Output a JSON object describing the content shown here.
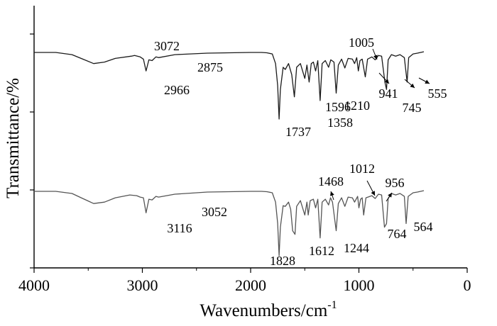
{
  "chart_data": {
    "type": "line",
    "title": "",
    "xlabel": "Wavenumbers/cm",
    "xlabel_superscript": "-1",
    "ylabel": "Transmittance/%",
    "xlim": [
      4000,
      0
    ],
    "x_ticks": [
      4000,
      3000,
      2000,
      1000,
      0
    ],
    "x_tick_labels": [
      "4000",
      "3000",
      "2000",
      "1000",
      "0"
    ],
    "y_tick_labels_shown": false,
    "grid": false,
    "legend": "none",
    "line_colors": [
      "#1a1a1a",
      "#555555"
    ],
    "series": [
      {
        "points": [
          [
            4000,
            0.95
          ],
          [
            3800,
            0.95
          ],
          [
            3650,
            0.92
          ],
          [
            3550,
            0.86
          ],
          [
            3450,
            0.8
          ],
          [
            3350,
            0.82
          ],
          [
            3250,
            0.87
          ],
          [
            3100,
            0.9
          ],
          [
            3072,
            0.91
          ],
          [
            3020,
            0.89
          ],
          [
            2990,
            0.86
          ],
          [
            2966,
            0.7
          ],
          [
            2940,
            0.85
          ],
          [
            2910,
            0.84
          ],
          [
            2875,
            0.89
          ],
          [
            2850,
            0.88
          ],
          [
            2700,
            0.92
          ],
          [
            2400,
            0.94
          ],
          [
            2000,
            0.95
          ],
          [
            1900,
            0.95
          ],
          [
            1850,
            0.945
          ],
          [
            1800,
            0.93
          ],
          [
            1770,
            0.8
          ],
          [
            1750,
            0.5
          ],
          [
            1737,
            0.05
          ],
          [
            1725,
            0.45
          ],
          [
            1700,
            0.75
          ],
          [
            1680,
            0.72
          ],
          [
            1650,
            0.8
          ],
          [
            1620,
            0.65
          ],
          [
            1596,
            0.35
          ],
          [
            1575,
            0.75
          ],
          [
            1540,
            0.8
          ],
          [
            1500,
            0.6
          ],
          [
            1480,
            0.78
          ],
          [
            1460,
            0.55
          ],
          [
            1440,
            0.8
          ],
          [
            1420,
            0.82
          ],
          [
            1400,
            0.7
          ],
          [
            1380,
            0.84
          ],
          [
            1358,
            0.3
          ],
          [
            1340,
            0.8
          ],
          [
            1310,
            0.84
          ],
          [
            1280,
            0.75
          ],
          [
            1260,
            0.85
          ],
          [
            1230,
            0.82
          ],
          [
            1210,
            0.4
          ],
          [
            1190,
            0.78
          ],
          [
            1160,
            0.86
          ],
          [
            1130,
            0.74
          ],
          [
            1100,
            0.87
          ],
          [
            1060,
            0.86
          ],
          [
            1040,
            0.8
          ],
          [
            1020,
            0.88
          ],
          [
            1005,
            0.7
          ],
          [
            990,
            0.84
          ],
          [
            970,
            0.86
          ],
          [
            941,
            0.62
          ],
          [
            920,
            0.86
          ],
          [
            880,
            0.89
          ],
          [
            850,
            0.85
          ],
          [
            820,
            0.91
          ],
          [
            790,
            0.9
          ],
          [
            760,
            0.55
          ],
          [
            745,
            0.45
          ],
          [
            730,
            0.85
          ],
          [
            700,
            0.92
          ],
          [
            660,
            0.9
          ],
          [
            620,
            0.92
          ],
          [
            580,
            0.88
          ],
          [
            555,
            0.55
          ],
          [
            540,
            0.88
          ],
          [
            500,
            0.93
          ],
          [
            460,
            0.94
          ],
          [
            400,
            0.96
          ]
        ]
      },
      {
        "points": [
          [
            4000,
            0.95
          ],
          [
            3800,
            0.95
          ],
          [
            3650,
            0.92
          ],
          [
            3550,
            0.85
          ],
          [
            3450,
            0.78
          ],
          [
            3350,
            0.8
          ],
          [
            3250,
            0.86
          ],
          [
            3116,
            0.9
          ],
          [
            3052,
            0.89
          ],
          [
            3020,
            0.87
          ],
          [
            2990,
            0.86
          ],
          [
            2966,
            0.65
          ],
          [
            2940,
            0.84
          ],
          [
            2910,
            0.83
          ],
          [
            2875,
            0.88
          ],
          [
            2850,
            0.87
          ],
          [
            2700,
            0.91
          ],
          [
            2400,
            0.94
          ],
          [
            2000,
            0.95
          ],
          [
            1900,
            0.95
          ],
          [
            1850,
            0.945
          ],
          [
            1800,
            0.93
          ],
          [
            1770,
            0.8
          ],
          [
            1750,
            0.5
          ],
          [
            1737,
            0.05
          ],
          [
            1725,
            0.45
          ],
          [
            1700,
            0.75
          ],
          [
            1680,
            0.74
          ],
          [
            1650,
            0.8
          ],
          [
            1630,
            0.7
          ],
          [
            1612,
            0.4
          ],
          [
            1590,
            0.35
          ],
          [
            1575,
            0.74
          ],
          [
            1540,
            0.82
          ],
          [
            1500,
            0.62
          ],
          [
            1480,
            0.8
          ],
          [
            1468,
            0.62
          ],
          [
            1450,
            0.82
          ],
          [
            1420,
            0.84
          ],
          [
            1400,
            0.72
          ],
          [
            1380,
            0.84
          ],
          [
            1358,
            0.3
          ],
          [
            1340,
            0.8
          ],
          [
            1310,
            0.84
          ],
          [
            1280,
            0.76
          ],
          [
            1262,
            0.86
          ],
          [
            1244,
            0.8
          ],
          [
            1210,
            0.4
          ],
          [
            1190,
            0.78
          ],
          [
            1160,
            0.86
          ],
          [
            1130,
            0.74
          ],
          [
            1100,
            0.87
          ],
          [
            1060,
            0.86
          ],
          [
            1040,
            0.8
          ],
          [
            1012,
            0.88
          ],
          [
            1000,
            0.72
          ],
          [
            985,
            0.84
          ],
          [
            970,
            0.86
          ],
          [
            956,
            0.62
          ],
          [
            935,
            0.86
          ],
          [
            880,
            0.89
          ],
          [
            850,
            0.85
          ],
          [
            820,
            0.91
          ],
          [
            790,
            0.9
          ],
          [
            764,
            0.45
          ],
          [
            745,
            0.5
          ],
          [
            730,
            0.85
          ],
          [
            700,
            0.92
          ],
          [
            660,
            0.9
          ],
          [
            620,
            0.92
          ],
          [
            580,
            0.88
          ],
          [
            564,
            0.5
          ],
          [
            545,
            0.88
          ],
          [
            500,
            0.93
          ],
          [
            460,
            0.94
          ],
          [
            400,
            0.96
          ]
        ]
      }
    ],
    "annotations": [
      {
        "series": 0,
        "text": "3072"
      },
      {
        "series": 0,
        "text": "2966"
      },
      {
        "series": 0,
        "text": "2875"
      },
      {
        "series": 0,
        "text": "1737"
      },
      {
        "series": 0,
        "text": "1596"
      },
      {
        "series": 0,
        "text": "1358"
      },
      {
        "series": 0,
        "text": "1210"
      },
      {
        "series": 0,
        "text": "1005"
      },
      {
        "series": 0,
        "text": "941"
      },
      {
        "series": 0,
        "text": "745"
      },
      {
        "series": 0,
        "text": "555"
      },
      {
        "series": 1,
        "text": "3116"
      },
      {
        "series": 1,
        "text": "3052"
      },
      {
        "series": 1,
        "text": "1828"
      },
      {
        "series": 1,
        "text": "1612"
      },
      {
        "series": 1,
        "text": "1468"
      },
      {
        "series": 1,
        "text": "1244"
      },
      {
        "series": 1,
        "text": "1012"
      },
      {
        "series": 1,
        "text": "956"
      },
      {
        "series": 1,
        "text": "764"
      },
      {
        "series": 1,
        "text": "564"
      }
    ]
  }
}
